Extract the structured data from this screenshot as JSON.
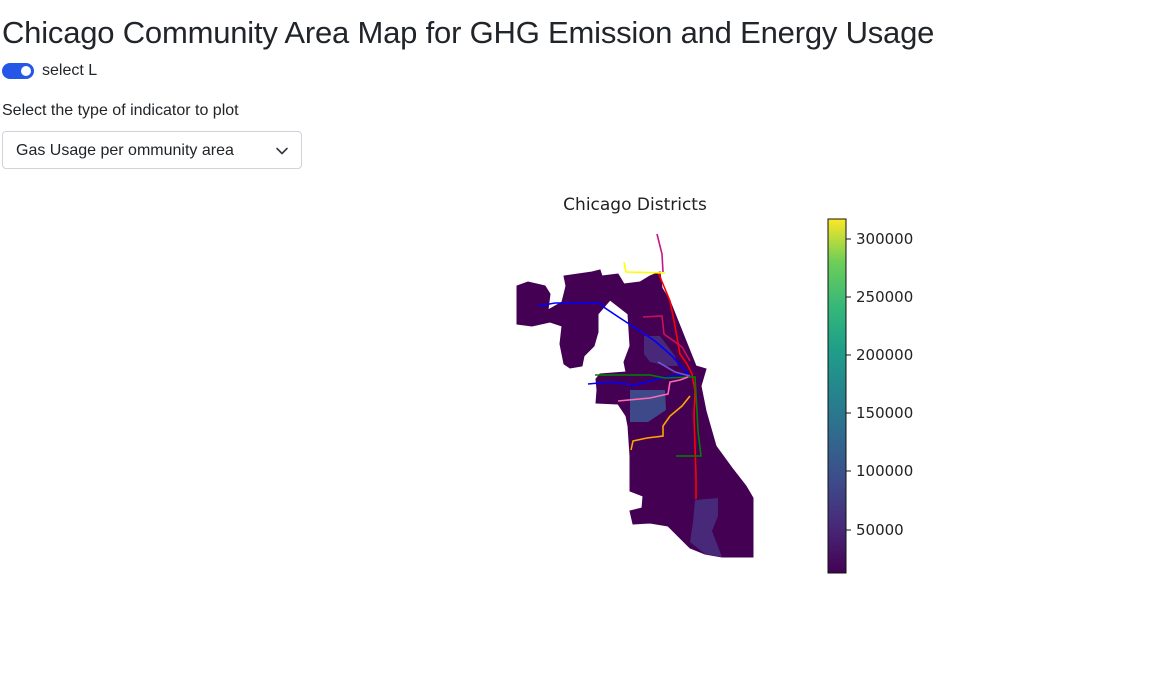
{
  "page": {
    "title": "Chicago Community Area Map for GHG Emission and Energy Usage"
  },
  "toggle": {
    "label": "select L",
    "checked": true,
    "accent_color": "#2456e8"
  },
  "indicator_select": {
    "label": "Select the type of indicator to plot",
    "selected": "Gas Usage per ommunity area",
    "icon": "chevron-down-icon"
  },
  "map": {
    "title": "Chicago Districts",
    "colormap": "viridis",
    "colorbar_ticks": [
      "300000",
      "250000",
      "200000",
      "150000",
      "100000",
      "50000"
    ],
    "l_line_colors": [
      "#ff0000",
      "#0000ff",
      "#008000",
      "#ffa500",
      "#ff69b4",
      "#800080",
      "#ffff00",
      "#c71585"
    ]
  }
}
